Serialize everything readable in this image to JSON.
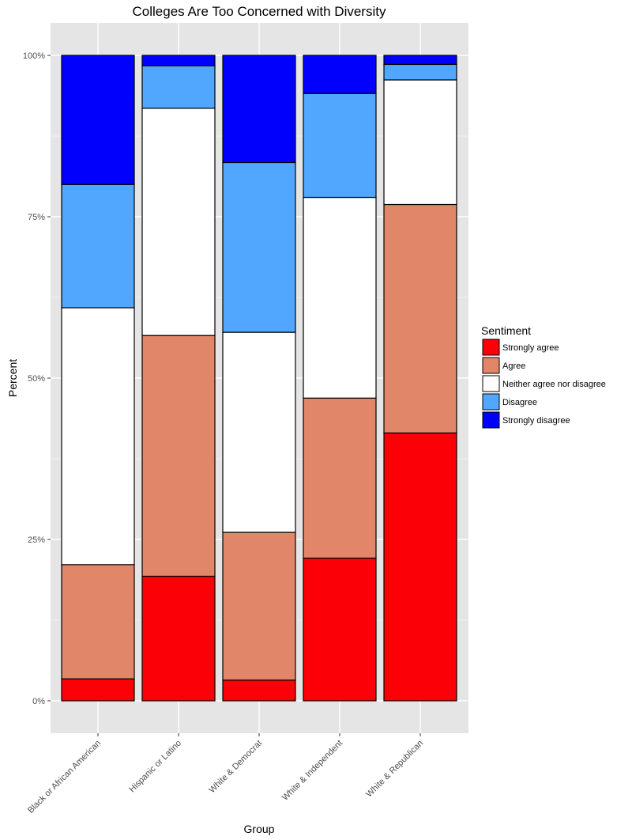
{
  "chart_data": {
    "type": "bar",
    "stacked": true,
    "title": "Colleges Are Too Concerned with Diversity",
    "xlabel": "Group",
    "ylabel": "Percent",
    "ylim": [
      0,
      100
    ],
    "y_ticks": [
      "0%",
      "25%",
      "50%",
      "75%",
      "100%"
    ],
    "categories": [
      "Black or African American",
      "Hispanic or Latino",
      "White & Democrat",
      "White & Independent",
      "White & Republican"
    ],
    "series": [
      {
        "name": "Strongly agree",
        "color": "#FC0007",
        "values": [
          3.4,
          19.3,
          3.2,
          22.1,
          41.5
        ]
      },
      {
        "name": "Agree",
        "color": "#E2866A",
        "values": [
          17.7,
          37.3,
          22.9,
          24.8,
          35.4
        ]
      },
      {
        "name": "Neither agree nor disagree",
        "color": "#FFFFFF",
        "values": [
          39.8,
          35.2,
          31.0,
          31.1,
          19.3
        ]
      },
      {
        "name": "Disagree",
        "color": "#51A6FD",
        "values": [
          19.1,
          6.6,
          26.3,
          16.1,
          2.4
        ]
      },
      {
        "name": "Strongly disagree",
        "color": "#0200FD",
        "values": [
          20.0,
          1.6,
          16.6,
          5.9,
          1.4
        ]
      }
    ],
    "legend": {
      "title": "Sentiment",
      "position": "right"
    },
    "grid": true,
    "panel_background": "#E5E5E5"
  }
}
